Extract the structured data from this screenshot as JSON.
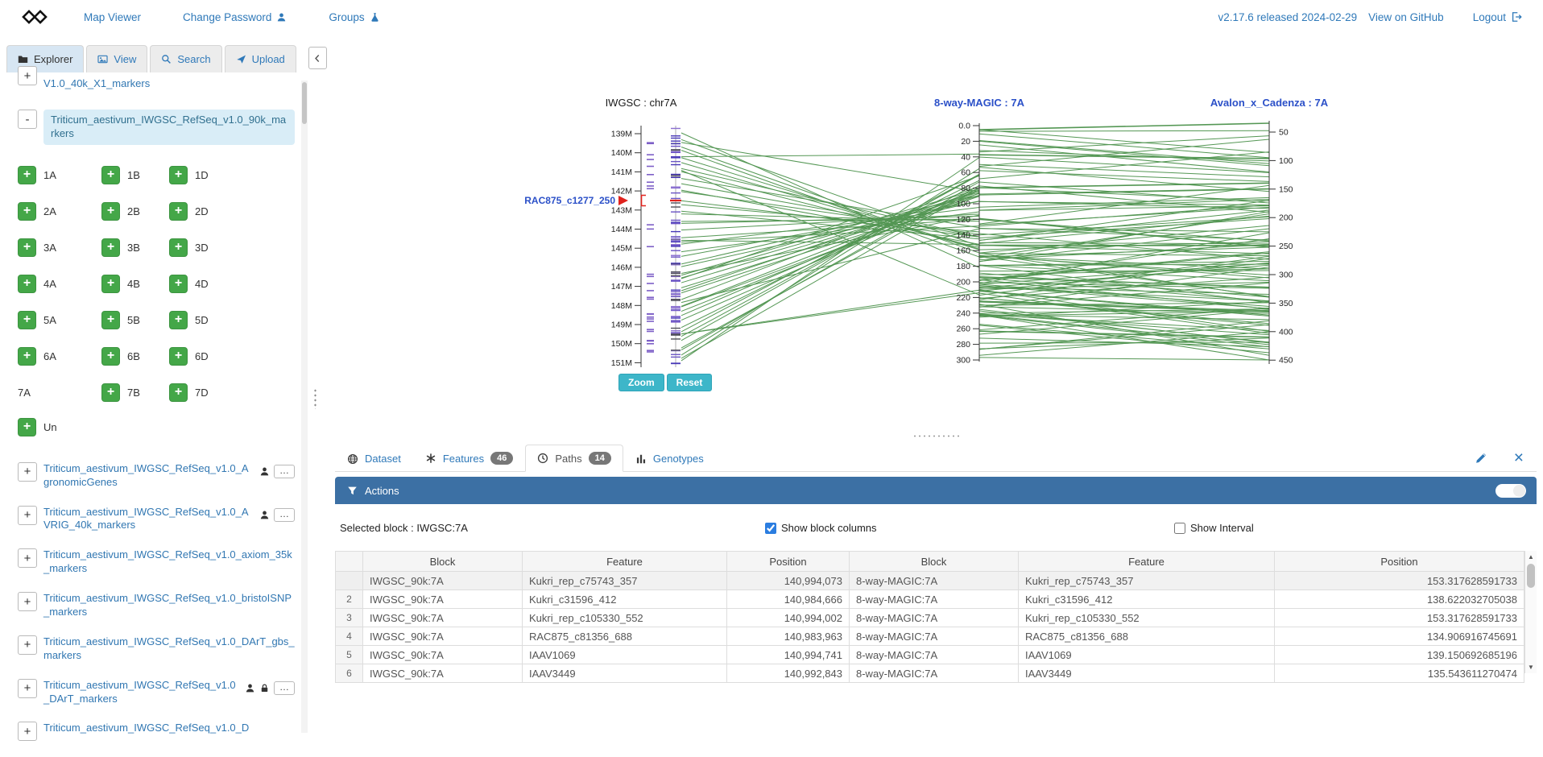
{
  "navbar": {
    "links": [
      {
        "label": "Map Viewer"
      },
      {
        "label": "Change Password",
        "icon": "user"
      },
      {
        "label": "Groups",
        "icon": "flask"
      }
    ],
    "version_label": "v2.17.6 released 2024-02-29",
    "github_label": "View on GitHub",
    "logout_label": "Logout"
  },
  "sidebar": {
    "tabs": [
      {
        "label": "Explorer",
        "icon": "folder",
        "active": true
      },
      {
        "label": "View",
        "icon": "image",
        "active": false
      },
      {
        "label": "Search",
        "icon": "search",
        "active": false
      },
      {
        "label": "Upload",
        "icon": "upload",
        "active": false
      }
    ],
    "partial_top_item": "V1.0_40k_X1_markers",
    "selected_dataset": {
      "toggle": "-",
      "label": "Triticum_aestivum_IWGSC_RefSeq_v1.0_90k_markers"
    },
    "chromosomes": [
      {
        "label": "1A",
        "button": true
      },
      {
        "label": "1B",
        "button": true
      },
      {
        "label": "1D",
        "button": true
      },
      {
        "label": "2A",
        "button": true
      },
      {
        "label": "2B",
        "button": true
      },
      {
        "label": "2D",
        "button": true
      },
      {
        "label": "3A",
        "button": true
      },
      {
        "label": "3B",
        "button": true
      },
      {
        "label": "3D",
        "button": true
      },
      {
        "label": "4A",
        "button": true
      },
      {
        "label": "4B",
        "button": true
      },
      {
        "label": "4D",
        "button": true
      },
      {
        "label": "5A",
        "button": true
      },
      {
        "label": "5B",
        "button": true
      },
      {
        "label": "5D",
        "button": true
      },
      {
        "label": "6A",
        "button": true
      },
      {
        "label": "6B",
        "button": true
      },
      {
        "label": "6D",
        "button": true
      },
      {
        "label": "7A",
        "button": false
      },
      {
        "label": "7B",
        "button": true
      },
      {
        "label": "7D",
        "button": true
      }
    ],
    "un": {
      "label": "Un",
      "button": true
    },
    "datasets": [
      {
        "label": "Triticum_aestivum_IWGSC_RefSeq_v1.0_AgronomicGenes",
        "user": true,
        "lock": false,
        "more": true
      },
      {
        "label": "Triticum_aestivum_IWGSC_RefSeq_v1.0_AVRIG_40k_markers",
        "user": true,
        "lock": false,
        "more": true
      },
      {
        "label": "Triticum_aestivum_IWGSC_RefSeq_v1.0_axiom_35k_markers",
        "user": false,
        "lock": false,
        "more": false
      },
      {
        "label": "Triticum_aestivum_IWGSC_RefSeq_v1.0_bristoISNP_markers",
        "user": false,
        "lock": false,
        "more": false
      },
      {
        "label": "Triticum_aestivum_IWGSC_RefSeq_v1.0_DArT_gbs_markers",
        "user": false,
        "lock": false,
        "more": false
      },
      {
        "label": "Triticum_aestivum_IWGSC_RefSeq_v1.0_DArT_markers",
        "user": true,
        "lock": true,
        "more": true
      },
      {
        "label": "Triticum_aestivum_IWGSC_RefSeq_v1.0_D",
        "user": false,
        "lock": false,
        "more": false
      }
    ]
  },
  "map": {
    "left_axis": {
      "title": "IWGSC : chr7A",
      "title_color": "#1a1a1a",
      "ticks": [
        "139M",
        "140M",
        "141M",
        "142M",
        "143M",
        "144M",
        "145M",
        "146M",
        "147M",
        "148M",
        "149M",
        "150M",
        "151M"
      ]
    },
    "middle_axis": {
      "title": "8-way-MAGIC : 7A",
      "title_color": "#2b50c8",
      "ticks": [
        "0.0",
        "20",
        "40",
        "60",
        "80",
        "100",
        "120",
        "140",
        "160",
        "180",
        "200",
        "220",
        "240",
        "260",
        "280",
        "300"
      ]
    },
    "right_axis": {
      "title": "Avalon_x_Cadenza : 7A",
      "title_color": "#2b50c8",
      "ticks": [
        "50",
        "100",
        "150",
        "200",
        "250",
        "300",
        "350",
        "400",
        "450"
      ]
    },
    "highlight_marker": {
      "label": "RAC875_c1277_250",
      "color": "#2b50c8",
      "pointer_color": "#e0231e"
    },
    "line_color": "#257a25",
    "zoom_label": "Zoom",
    "reset_label": "Reset"
  },
  "panel": {
    "tabs": [
      {
        "label": "Dataset",
        "icon": "globe",
        "badge": null,
        "active": false
      },
      {
        "label": "Features",
        "icon": "asterisk",
        "badge": "46",
        "active": false
      },
      {
        "label": "Paths",
        "icon": "clock",
        "badge": "14",
        "active": true
      },
      {
        "label": "Genotypes",
        "icon": "bars",
        "badge": null,
        "active": false
      }
    ],
    "actions_label": "Actions",
    "selected_block_label": "Selected block : IWGSC:7A",
    "show_block_columns": {
      "label": "Show block columns",
      "checked": true
    },
    "show_interval": {
      "label": "Show Interval",
      "checked": false
    },
    "table": {
      "headers": [
        "",
        "Block",
        "Feature",
        "Position",
        "Block",
        "Feature",
        "Position"
      ],
      "rows": [
        {
          "num": "",
          "cells": [
            "IWGSC_90k:7A",
            "Kukri_rep_c75743_357",
            "140,994,073",
            "8-way-MAGIC:7A",
            "Kukri_rep_c75743_357",
            "153.317628591733"
          ]
        },
        {
          "num": "2",
          "cells": [
            "IWGSC_90k:7A",
            "Kukri_c31596_412",
            "140,984,666",
            "8-way-MAGIC:7A",
            "Kukri_c31596_412",
            "138.622032705038"
          ]
        },
        {
          "num": "3",
          "cells": [
            "IWGSC_90k:7A",
            "Kukri_rep_c105330_552",
            "140,994,002",
            "8-way-MAGIC:7A",
            "Kukri_rep_c105330_552",
            "153.317628591733"
          ]
        },
        {
          "num": "4",
          "cells": [
            "IWGSC_90k:7A",
            "RAC875_c81356_688",
            "140,983,963",
            "8-way-MAGIC:7A",
            "RAC875_c81356_688",
            "134.906916745691"
          ]
        },
        {
          "num": "5",
          "cells": [
            "IWGSC_90k:7A",
            "IAAV1069",
            "140,994,741",
            "8-way-MAGIC:7A",
            "IAAV1069",
            "139.150692685196"
          ]
        },
        {
          "num": "6",
          "cells": [
            "IWGSC_90k:7A",
            "IAAV3449",
            "140,992,843",
            "8-way-MAGIC:7A",
            "IAAV3449",
            "135.543611270474"
          ]
        }
      ]
    }
  }
}
